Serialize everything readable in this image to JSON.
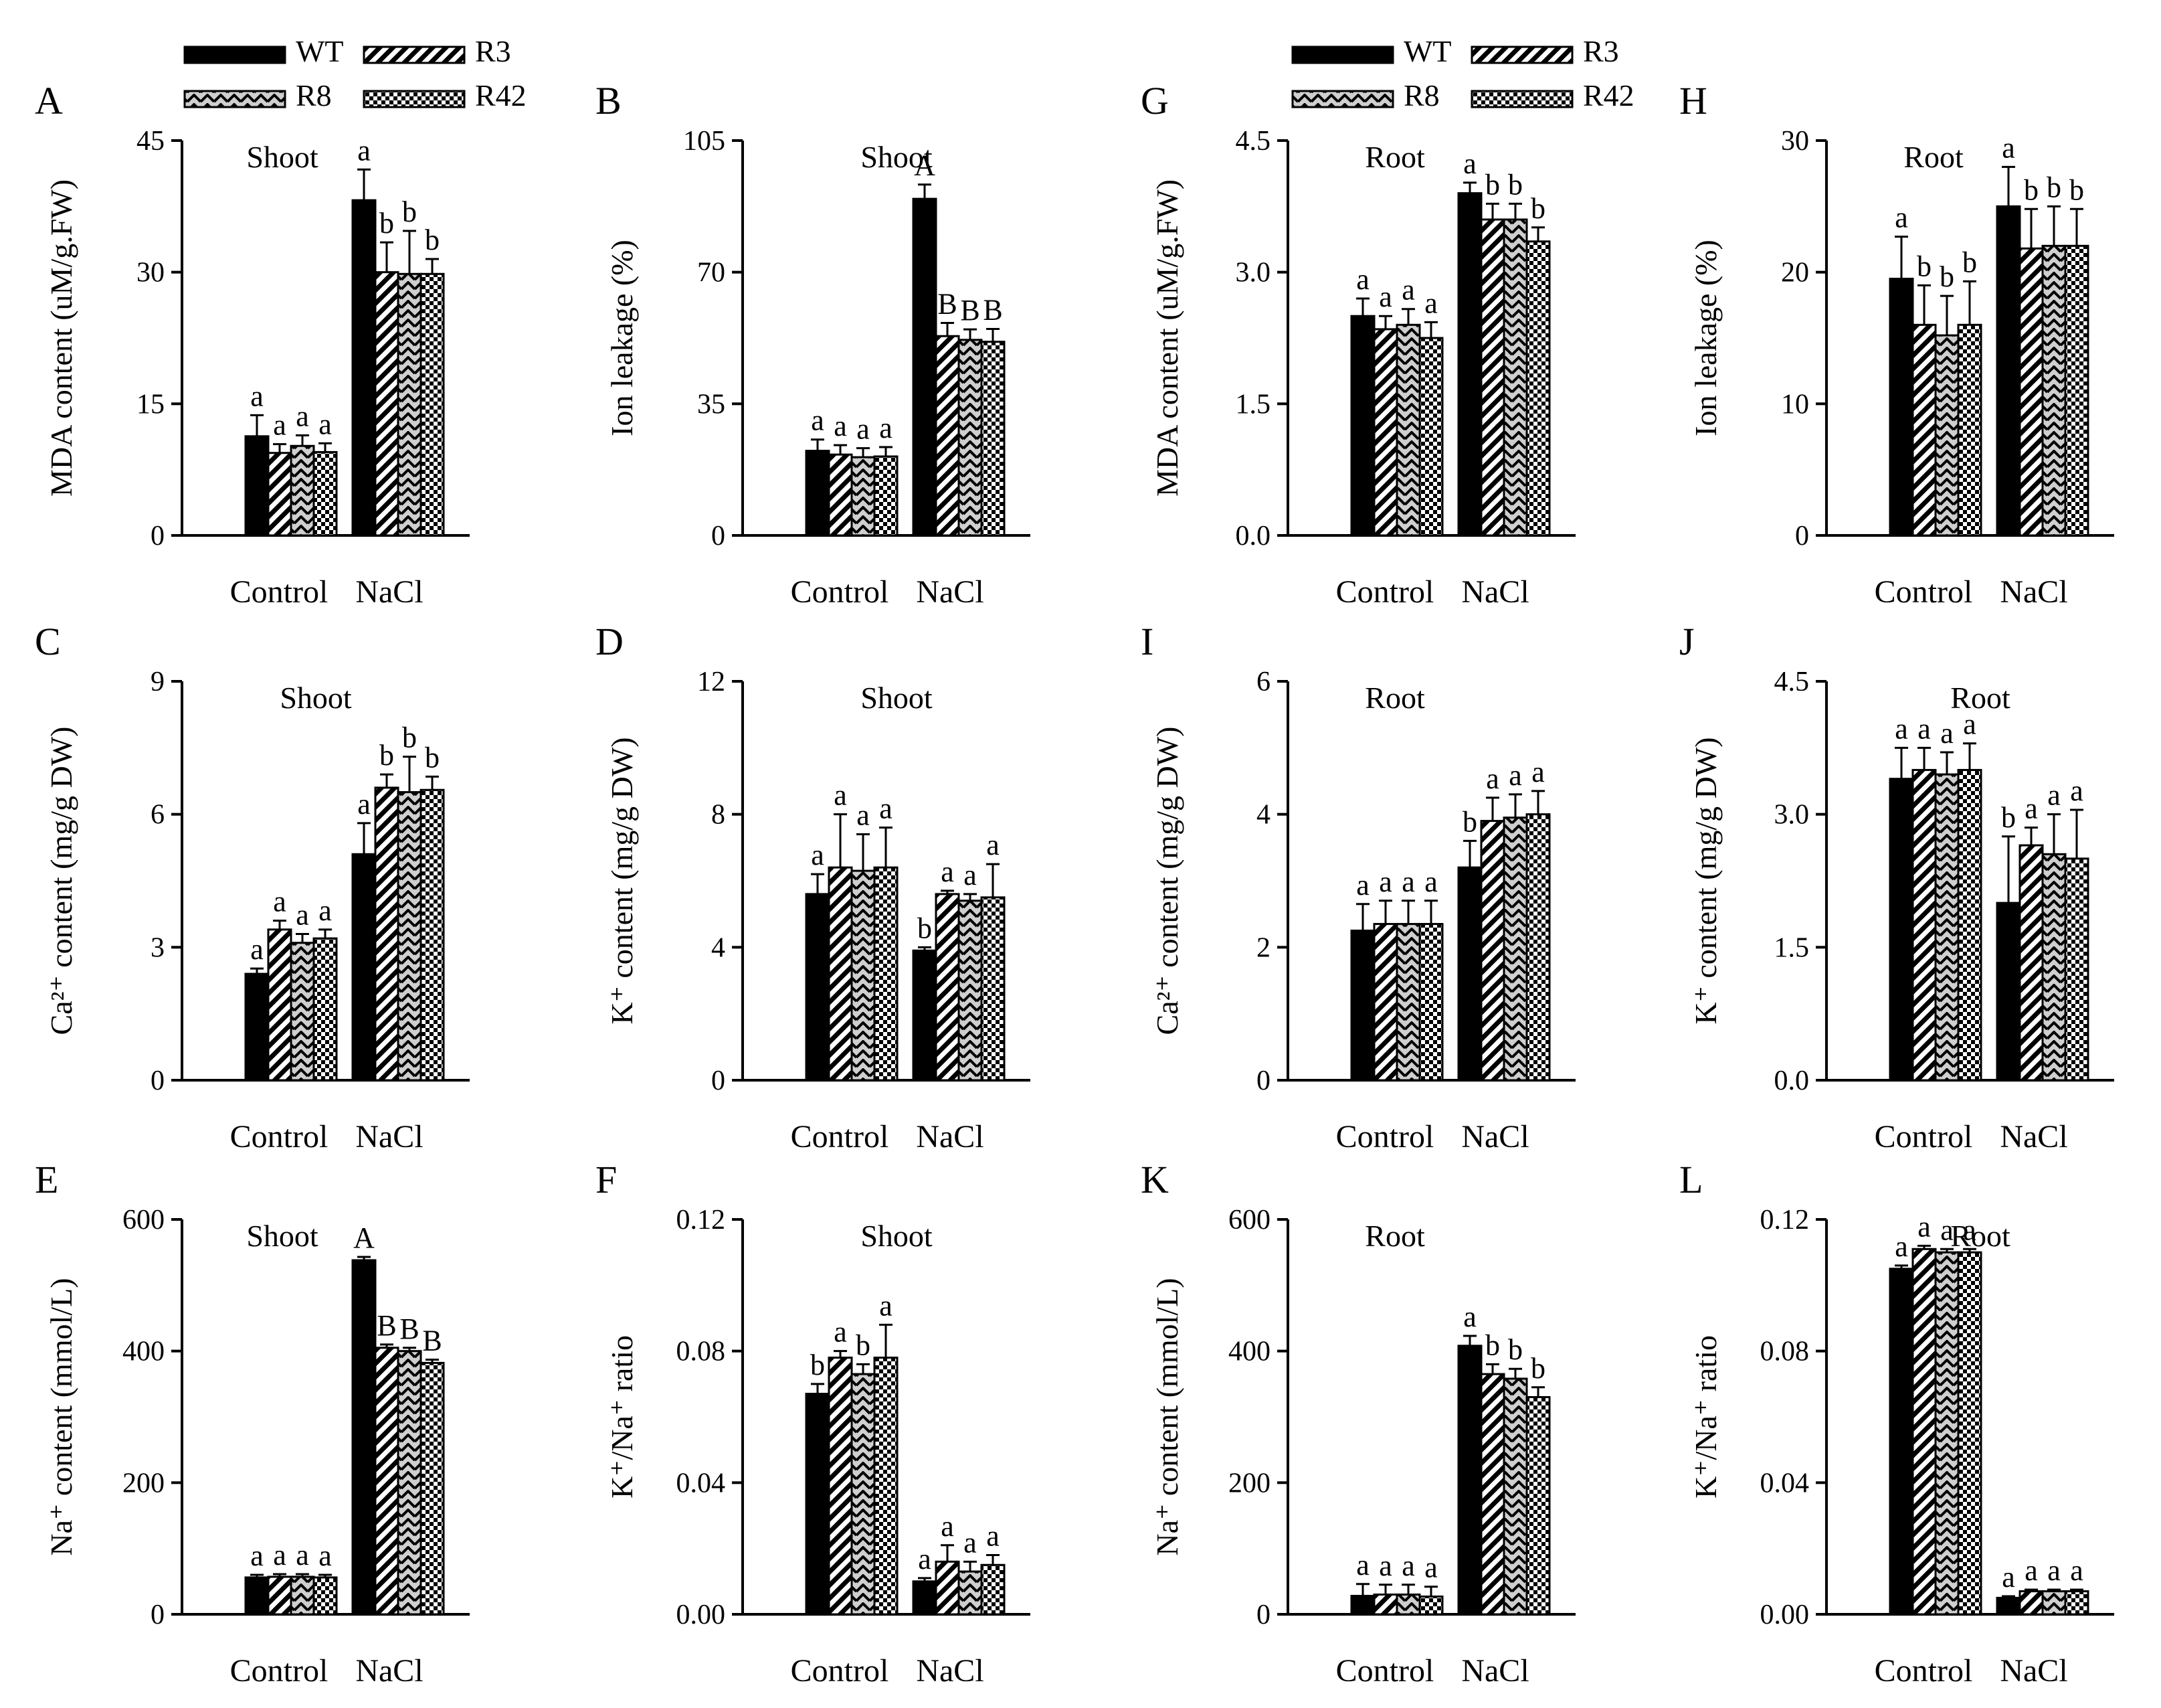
{
  "legends": [
    {
      "items": [
        {
          "label": "WT",
          "pattern": "solid"
        },
        {
          "label": "R3",
          "pattern": "stripe"
        },
        {
          "label": "R8",
          "pattern": "chevron"
        },
        {
          "label": "R42",
          "pattern": "check"
        }
      ]
    },
    {
      "items": [
        {
          "label": "WT",
          "pattern": "solid"
        },
        {
          "label": "R3",
          "pattern": "stripe"
        },
        {
          "label": "R8",
          "pattern": "chevron"
        },
        {
          "label": "R42",
          "pattern": "check"
        }
      ]
    }
  ],
  "chart_data": [
    {
      "type": "bar",
      "panel": "A",
      "annotation": "Shoot",
      "ylabel": "MDA content (uM/g.FW)",
      "ylim": [
        0,
        45
      ],
      "yticks": [
        "0",
        "15",
        "30",
        "45"
      ],
      "categories": [
        "Control",
        "NaCl"
      ],
      "series": [
        {
          "name": "WT",
          "values": [
            11.3,
            38.2
          ],
          "errors": [
            2.4,
            3.5
          ]
        },
        {
          "name": "R3",
          "values": [
            9.4,
            30.0
          ],
          "errors": [
            1.0,
            3.4
          ]
        },
        {
          "name": "R8",
          "values": [
            10.2,
            29.8
          ],
          "errors": [
            1.2,
            4.9
          ]
        },
        {
          "name": "R42",
          "values": [
            9.5,
            29.8
          ],
          "errors": [
            1.0,
            1.7
          ]
        }
      ],
      "letters": [
        [
          "a",
          "a",
          "a",
          "a"
        ],
        [
          "a",
          "b",
          "b",
          "b"
        ]
      ]
    },
    {
      "type": "bar",
      "panel": "B",
      "annotation": "Shoot",
      "ylabel": "Ion leakage (%)",
      "ylim": [
        0,
        105
      ],
      "yticks": [
        "0",
        "35",
        "70",
        "105"
      ],
      "categories": [
        "Control",
        "NaCl"
      ],
      "series": [
        {
          "name": "WT",
          "values": [
            22.5,
            89.5
          ],
          "errors": [
            3.0,
            3.8
          ]
        },
        {
          "name": "R3",
          "values": [
            21.5,
            53.0
          ],
          "errors": [
            2.5,
            3.5
          ]
        },
        {
          "name": "R8",
          "values": [
            20.8,
            52.0
          ],
          "errors": [
            2.4,
            2.8
          ]
        },
        {
          "name": "R42",
          "values": [
            21.0,
            51.5
          ],
          "errors": [
            2.5,
            3.4
          ]
        }
      ],
      "letters": [
        [
          "a",
          "a",
          "a",
          "a"
        ],
        [
          "A",
          "B",
          "B",
          "B"
        ]
      ]
    },
    {
      "type": "bar",
      "panel": "G",
      "annotation": "Root",
      "ylabel": "MDA content (uM/g.FW)",
      "ylim": [
        0,
        4.5
      ],
      "yticks": [
        "0.0",
        "1.5",
        "3.0",
        "4.5"
      ],
      "categories": [
        "Control",
        "NaCl"
      ],
      "series": [
        {
          "name": "WT",
          "values": [
            2.5,
            3.9
          ],
          "errors": [
            0.2,
            0.12
          ]
        },
        {
          "name": "R3",
          "values": [
            2.35,
            3.6
          ],
          "errors": [
            0.15,
            0.18
          ]
        },
        {
          "name": "R8",
          "values": [
            2.4,
            3.6
          ],
          "errors": [
            0.18,
            0.18
          ]
        },
        {
          "name": "R42",
          "values": [
            2.25,
            3.35
          ],
          "errors": [
            0.18,
            0.16
          ]
        }
      ],
      "letters": [
        [
          "a",
          "a",
          "a",
          "a"
        ],
        [
          "a",
          "b",
          "b",
          "b"
        ]
      ]
    },
    {
      "type": "bar",
      "panel": "H",
      "annotation": "Root",
      "ylabel": "Ion leakage (%)",
      "ylim": [
        0,
        30
      ],
      "yticks": [
        "0",
        "10",
        "20",
        "30"
      ],
      "categories": [
        "Control",
        "NaCl"
      ],
      "series": [
        {
          "name": "WT",
          "values": [
            19.5,
            25.0
          ],
          "errors": [
            3.2,
            3.0
          ]
        },
        {
          "name": "R3",
          "values": [
            16.0,
            21.8
          ],
          "errors": [
            3.0,
            3.0
          ]
        },
        {
          "name": "R8",
          "values": [
            15.2,
            22.0
          ],
          "errors": [
            3.0,
            3.0
          ]
        },
        {
          "name": "R42",
          "values": [
            16.0,
            22.0
          ],
          "errors": [
            3.3,
            2.8
          ]
        }
      ],
      "letters": [
        [
          "a",
          "b",
          "b",
          "b"
        ],
        [
          "a",
          "b",
          "b",
          "b"
        ]
      ]
    },
    {
      "type": "bar",
      "panel": "C",
      "annotation": "Shoot",
      "ylabel": "Ca²⁺ content (mg/g DW)",
      "ylim": [
        0,
        9
      ],
      "yticks": [
        "0",
        "3",
        "6",
        "9"
      ],
      "categories": [
        "Control",
        "NaCl"
      ],
      "series": [
        {
          "name": "WT",
          "values": [
            2.4,
            5.1
          ],
          "errors": [
            0.12,
            0.7
          ]
        },
        {
          "name": "R3",
          "values": [
            3.4,
            6.6
          ],
          "errors": [
            0.2,
            0.3
          ]
        },
        {
          "name": "R8",
          "values": [
            3.1,
            6.5
          ],
          "errors": [
            0.2,
            0.8
          ]
        },
        {
          "name": "R42",
          "values": [
            3.2,
            6.55
          ],
          "errors": [
            0.2,
            0.3
          ]
        }
      ],
      "letters": [
        [
          "a",
          "a",
          "a",
          "a"
        ],
        [
          "a",
          "b",
          "b",
          "b"
        ]
      ]
    },
    {
      "type": "bar",
      "panel": "D",
      "annotation": "Shoot",
      "ylabel": "K⁺ content (mg/g DW)",
      "ylim": [
        0,
        12
      ],
      "yticks": [
        "0",
        "4",
        "8",
        "12"
      ],
      "categories": [
        "Control",
        "NaCl"
      ],
      "series": [
        {
          "name": "WT",
          "values": [
            5.6,
            3.9
          ],
          "errors": [
            0.6,
            0.1
          ]
        },
        {
          "name": "R3",
          "values": [
            6.4,
            5.6
          ],
          "errors": [
            1.6,
            0.1
          ]
        },
        {
          "name": "R8",
          "values": [
            6.3,
            5.4
          ],
          "errors": [
            1.1,
            0.2
          ]
        },
        {
          "name": "R42",
          "values": [
            6.4,
            5.5
          ],
          "errors": [
            1.2,
            1.0
          ]
        }
      ],
      "letters": [
        [
          "a",
          "a",
          "a",
          "a"
        ],
        [
          "b",
          "a",
          "a",
          "a"
        ]
      ]
    },
    {
      "type": "bar",
      "panel": "I",
      "annotation": "Root",
      "ylabel": "Ca²⁺ content (mg/g DW)",
      "ylim": [
        0,
        6
      ],
      "yticks": [
        "0",
        "2",
        "4",
        "6"
      ],
      "categories": [
        "Control",
        "NaCl"
      ],
      "series": [
        {
          "name": "WT",
          "values": [
            2.25,
            3.2
          ],
          "errors": [
            0.4,
            0.4
          ]
        },
        {
          "name": "R3",
          "values": [
            2.35,
            3.9
          ],
          "errors": [
            0.35,
            0.35
          ]
        },
        {
          "name": "R8",
          "values": [
            2.35,
            3.95
          ],
          "errors": [
            0.35,
            0.35
          ]
        },
        {
          "name": "R42",
          "values": [
            2.35,
            4.0
          ],
          "errors": [
            0.35,
            0.35
          ]
        }
      ],
      "letters": [
        [
          "a",
          "a",
          "a",
          "a"
        ],
        [
          "b",
          "a",
          "a",
          "a"
        ]
      ]
    },
    {
      "type": "bar",
      "panel": "J",
      "annotation": "Root",
      "ylabel": "K⁺ content (mg/g DW)",
      "ylim": [
        0,
        4.5
      ],
      "yticks": [
        "0.0",
        "1.5",
        "3.0",
        "4.5"
      ],
      "categories": [
        "Control",
        "NaCl"
      ],
      "series": [
        {
          "name": "WT",
          "values": [
            3.4,
            2.0
          ],
          "errors": [
            0.35,
            0.75
          ]
        },
        {
          "name": "R3",
          "values": [
            3.5,
            2.65
          ],
          "errors": [
            0.25,
            0.2
          ]
        },
        {
          "name": "R8",
          "values": [
            3.45,
            2.55
          ],
          "errors": [
            0.25,
            0.45
          ]
        },
        {
          "name": "R42",
          "values": [
            3.5,
            2.5
          ],
          "errors": [
            0.3,
            0.55
          ]
        }
      ],
      "letters": [
        [
          "a",
          "a",
          "a",
          "a"
        ],
        [
          "b",
          "a",
          "a",
          "a"
        ]
      ]
    },
    {
      "type": "bar",
      "panel": "E",
      "annotation": "Shoot",
      "ylabel": "Na⁺ content (mmol/L)",
      "ylim": [
        0,
        600
      ],
      "yticks": [
        "0",
        "200",
        "400",
        "600"
      ],
      "categories": [
        "Control",
        "NaCl"
      ],
      "series": [
        {
          "name": "WT",
          "values": [
            56,
            538
          ],
          "errors": [
            4,
            5
          ]
        },
        {
          "name": "R3",
          "values": [
            57,
            405
          ],
          "errors": [
            4,
            5
          ]
        },
        {
          "name": "R8",
          "values": [
            57,
            400
          ],
          "errors": [
            4,
            5
          ]
        },
        {
          "name": "R42",
          "values": [
            56,
            382
          ],
          "errors": [
            4,
            5
          ]
        }
      ],
      "letters": [
        [
          "a",
          "a",
          "a",
          "a"
        ],
        [
          "A",
          "B",
          "B",
          "B"
        ]
      ]
    },
    {
      "type": "bar",
      "panel": "F",
      "annotation": "Shoot",
      "ylabel": "K⁺/Na⁺ ratio",
      "ylim": [
        0,
        0.12
      ],
      "yticks": [
        "0.00",
        "0.04",
        "0.08",
        "0.12"
      ],
      "categories": [
        "Control",
        "NaCl"
      ],
      "series": [
        {
          "name": "WT",
          "values": [
            0.067,
            0.01
          ],
          "errors": [
            0.003,
            0.001
          ]
        },
        {
          "name": "R3",
          "values": [
            0.078,
            0.016
          ],
          "errors": [
            0.002,
            0.005
          ]
        },
        {
          "name": "R8",
          "values": [
            0.073,
            0.013
          ],
          "errors": [
            0.003,
            0.003
          ]
        },
        {
          "name": "R42",
          "values": [
            0.078,
            0.015
          ],
          "errors": [
            0.01,
            0.003
          ]
        }
      ],
      "letters": [
        [
          "b",
          "a",
          "b",
          "a"
        ],
        [
          "a",
          "a",
          "a",
          "a"
        ]
      ]
    },
    {
      "type": "bar",
      "panel": "K",
      "annotation": "Root",
      "ylabel": "Na⁺ content (mmol/L)",
      "ylim": [
        0,
        600
      ],
      "yticks": [
        "0",
        "200",
        "400",
        "600"
      ],
      "categories": [
        "Control",
        "NaCl"
      ],
      "series": [
        {
          "name": "WT",
          "values": [
            28,
            408
          ],
          "errors": [
            18,
            15
          ]
        },
        {
          "name": "R3",
          "values": [
            30,
            365
          ],
          "errors": [
            15,
            15
          ]
        },
        {
          "name": "R8",
          "values": [
            30,
            358
          ],
          "errors": [
            15,
            15
          ]
        },
        {
          "name": "R42",
          "values": [
            27,
            330
          ],
          "errors": [
            15,
            15
          ]
        }
      ],
      "letters": [
        [
          "a",
          "a",
          "a",
          "a"
        ],
        [
          "a",
          "b",
          "b",
          "b"
        ]
      ]
    },
    {
      "type": "bar",
      "panel": "L",
      "annotation": "Root",
      "ylabel": "K⁺/Na⁺ ratio",
      "ylim": [
        0,
        0.12
      ],
      "yticks": [
        "0.00",
        "0.04",
        "0.08",
        "0.12"
      ],
      "categories": [
        "Control",
        "NaCl"
      ],
      "series": [
        {
          "name": "WT",
          "values": [
            0.105,
            0.005
          ],
          "errors": [
            0.001,
            0.0005
          ]
        },
        {
          "name": "R3",
          "values": [
            0.111,
            0.007
          ],
          "errors": [
            0.001,
            0.0005
          ]
        },
        {
          "name": "R8",
          "values": [
            0.11,
            0.007
          ],
          "errors": [
            0.001,
            0.0005
          ]
        },
        {
          "name": "R42",
          "values": [
            0.11,
            0.007
          ],
          "errors": [
            0.001,
            0.0005
          ]
        }
      ],
      "letters": [
        [
          "a",
          "a",
          "a",
          "a"
        ],
        [
          "a",
          "a",
          "a",
          "a"
        ]
      ]
    }
  ]
}
